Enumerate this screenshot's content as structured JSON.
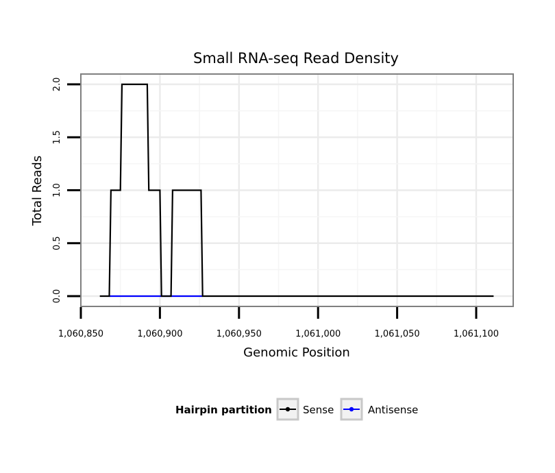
{
  "chart_data": {
    "type": "line",
    "title": "Small RNA-seq Read Density",
    "xlabel": "Genomic Position",
    "ylabel": "Total Reads",
    "xlim": [
      1060850,
      1061125
    ],
    "ylim": [
      -0.09,
      2.05
    ],
    "x_ticks": [
      1060850,
      1060900,
      1060950,
      1061000,
      1061050,
      1061100
    ],
    "x_tick_labels": [
      "1,060,850",
      "1,060,900",
      "1,060,950",
      "1,061,000",
      "1,061,050",
      "1,061,100"
    ],
    "y_ticks": [
      0.0,
      0.5,
      1.0,
      1.5,
      2.0
    ],
    "y_tick_labels": [
      "0.0",
      "0.5",
      "1.0",
      "1.5",
      "2.0"
    ],
    "grid": true,
    "series": [
      {
        "name": "Sense",
        "color": "#000000",
        "x": [
          1060862,
          1060868,
          1060869,
          1060875,
          1060876,
          1060892,
          1060893,
          1060900,
          1060901,
          1060907,
          1060908,
          1060926,
          1060927,
          1061111
        ],
        "y": [
          0,
          0,
          1,
          1,
          2,
          2,
          1,
          1,
          0,
          0,
          1,
          1,
          0,
          0
        ]
      },
      {
        "name": "Antisense",
        "color": "#0000ff",
        "x": [
          1060868,
          1060927
        ],
        "y": [
          0,
          0
        ]
      }
    ],
    "legend": {
      "title": "Hairpin partition",
      "position": "bottom",
      "entries": [
        "Sense",
        "Antisense"
      ]
    }
  }
}
